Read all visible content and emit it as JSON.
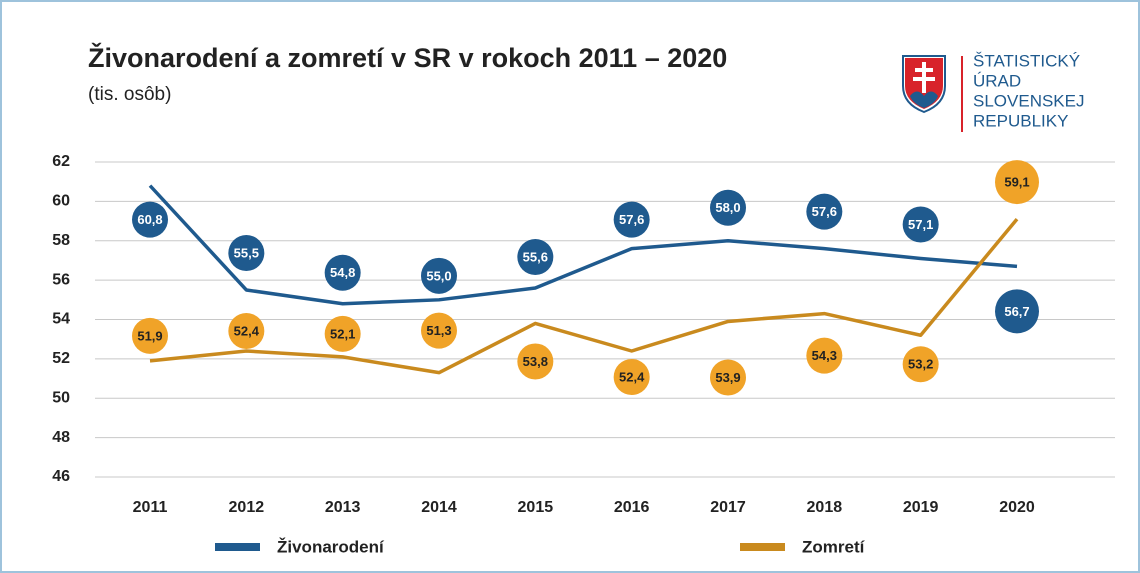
{
  "chart_data": {
    "type": "line",
    "title": "Živonarodení a zomretí v SR v rokoch 2011 – 2020",
    "subtitle": "(tis. osôb)",
    "logo_text": [
      "ŠTATISTICKÝ",
      "ÚRAD",
      "SLOVENSKEJ",
      "REPUBLIKY"
    ],
    "categories": [
      "2011",
      "2012",
      "2013",
      "2014",
      "2015",
      "2016",
      "2017",
      "2018",
      "2019",
      "2020"
    ],
    "series": [
      {
        "name": "Živonarodení",
        "color": "#1f5a8e",
        "bubble_color": "#1f5a8e",
        "values": [
          60.8,
          55.5,
          54.8,
          55.0,
          55.6,
          57.6,
          58.0,
          57.6,
          57.1,
          56.7
        ],
        "value_labels": [
          "60,8",
          "55,5",
          "54,8",
          "55,0",
          "55,6",
          "57,6",
          "58,0",
          "57,6",
          "57,1",
          "56,7"
        ]
      },
      {
        "name": "Zomretí",
        "color": "#c98a1e",
        "bubble_color": "#f0a328",
        "values": [
          51.9,
          52.4,
          52.1,
          51.3,
          53.8,
          52.4,
          53.9,
          54.3,
          53.2,
          59.1
        ],
        "value_labels": [
          "51,9",
          "52,4",
          "52,1",
          "51,3",
          "53,8",
          "52,4",
          "53,9",
          "54,3",
          "53,2",
          "59,1"
        ]
      }
    ],
    "ylim": [
      46,
      62
    ],
    "yticks": [
      46,
      48,
      50,
      52,
      54,
      56,
      58,
      60,
      62
    ],
    "grid": true
  }
}
